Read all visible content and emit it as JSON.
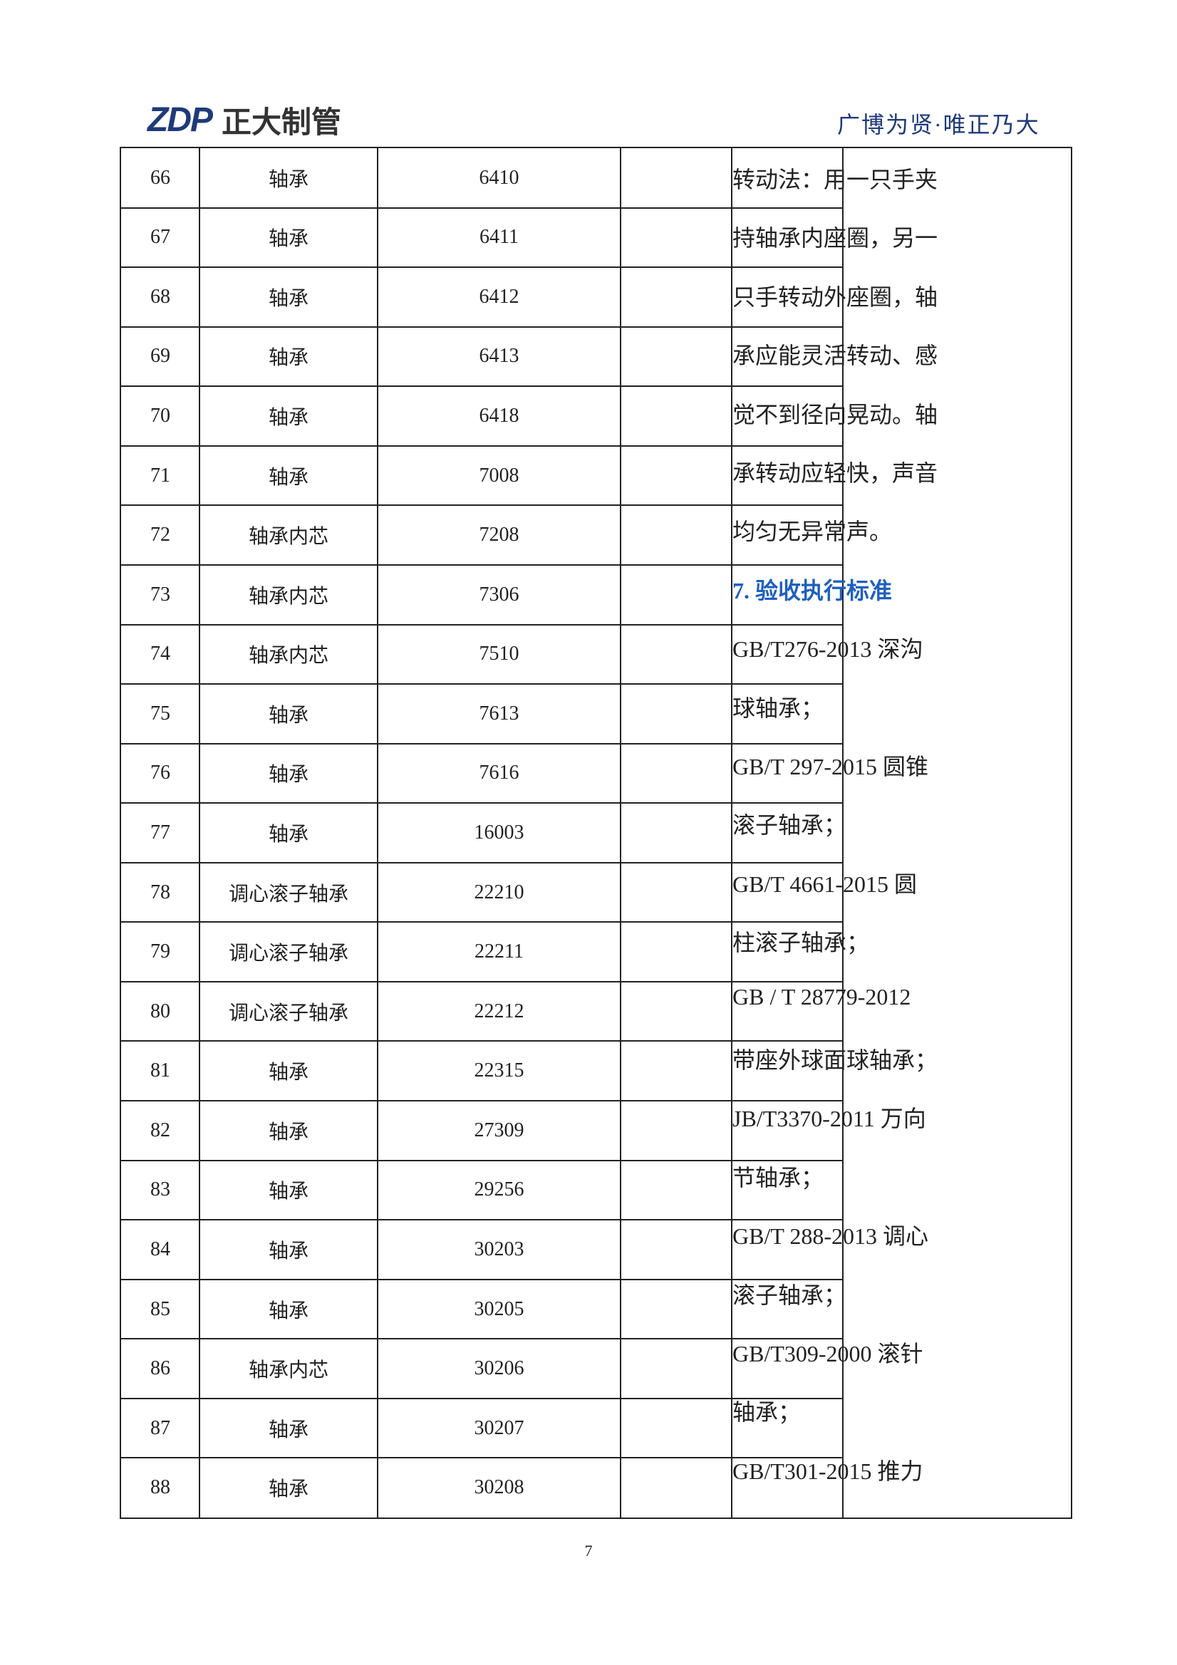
{
  "header": {
    "logo_mark": "ZDP",
    "logo_text": "正大制管",
    "slogan": "广博为贤·唯正乃大"
  },
  "table": {
    "rows": [
      [
        "66",
        "轴承",
        "6410"
      ],
      [
        "67",
        "轴承",
        "6411"
      ],
      [
        "68",
        "轴承",
        "6412"
      ],
      [
        "69",
        "轴承",
        "6413"
      ],
      [
        "70",
        "轴承",
        "6418"
      ],
      [
        "71",
        "轴承",
        "7008"
      ],
      [
        "72",
        "轴承内芯",
        "7208"
      ],
      [
        "73",
        "轴承内芯",
        "7306"
      ],
      [
        "74",
        "轴承内芯",
        "7510"
      ],
      [
        "75",
        "轴承",
        "7613"
      ],
      [
        "76",
        "轴承",
        "7616"
      ],
      [
        "77",
        "轴承",
        "16003"
      ],
      [
        "78",
        "调心滚子轴承",
        "22210"
      ],
      [
        "79",
        "调心滚子轴承",
        "22211"
      ],
      [
        "80",
        "调心滚子轴承",
        "22212"
      ],
      [
        "81",
        "轴承",
        "22315"
      ],
      [
        "82",
        "轴承",
        "27309"
      ],
      [
        "83",
        "轴承",
        "29256"
      ],
      [
        "84",
        "轴承",
        "30203"
      ],
      [
        "85",
        "轴承",
        "30205"
      ],
      [
        "86",
        "轴承内芯",
        "30206"
      ],
      [
        "87",
        "轴承",
        "30207"
      ],
      [
        "88",
        "轴承",
        "30208"
      ]
    ],
    "side_text": [
      "转动法：用一只手夹",
      "持轴承内座圈，另一",
      "只手转动外座圈，轴",
      "承应能灵活转动、感",
      "觉不到径向晃动。轴",
      "承转动应轻快，声音",
      "均匀无异常声。",
      "7. 验收执行标准",
      "GB/T276-2013 深沟",
      "球轴承；",
      "GB/T 297-2015 圆锥",
      "滚子轴承；",
      "GB/T 4661-2015 圆",
      "柱滚子轴承；",
      "GB / T 28779-2012",
      "带座外球面球轴承；",
      "JB/T3370-2011 万向",
      "节轴承；",
      "GB/T 288-2013 调心",
      "滚子轴承；",
      "GB/T309-2000 滚针",
      "轴承；",
      "GB/T301-2015 推力"
    ]
  },
  "page_number": "7"
}
